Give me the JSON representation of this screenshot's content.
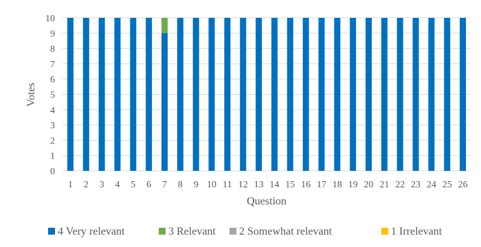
{
  "chart_data": {
    "type": "bar",
    "stacked": true,
    "title": "",
    "xlabel": "Question",
    "ylabel": "Votes",
    "ylim": [
      0,
      10
    ],
    "yticks": [
      "0",
      "1",
      "2",
      "3",
      "4",
      "5",
      "6",
      "7",
      "8",
      "9",
      "10"
    ],
    "grid": true,
    "legend_position": "bottom",
    "categories": [
      "1",
      "2",
      "3",
      "4",
      "5",
      "6",
      "7",
      "8",
      "9",
      "10",
      "11",
      "12",
      "13",
      "14",
      "15",
      "16",
      "17",
      "18",
      "19",
      "20",
      "21",
      "22",
      "23",
      "24",
      "25",
      "26"
    ],
    "series": [
      {
        "name": "4 Very relevant",
        "color": "#0070c0",
        "values": [
          10,
          10,
          10,
          10,
          10,
          10,
          9,
          10,
          10,
          10,
          10,
          10,
          10,
          10,
          10,
          10,
          10,
          10,
          10,
          10,
          10,
          10,
          10,
          10,
          10,
          10
        ]
      },
      {
        "name": "3 Relevant",
        "color": "#70ad47",
        "values": [
          0,
          0,
          0,
          0,
          0,
          0,
          1,
          0,
          0,
          0,
          0,
          0,
          0,
          0,
          0,
          0,
          0,
          0,
          0,
          0,
          0,
          0,
          0,
          0,
          0,
          0
        ]
      },
      {
        "name": "2 Somewhat relevant",
        "color": "#a5a5a5",
        "values": [
          0,
          0,
          0,
          0,
          0,
          0,
          0,
          0,
          0,
          0,
          0,
          0,
          0,
          0,
          0,
          0,
          0,
          0,
          0,
          0,
          0,
          0,
          0,
          0,
          0,
          0
        ]
      },
      {
        "name": "1 Irrelevant",
        "color": "#ffc000",
        "values": [
          0,
          0,
          0,
          0,
          0,
          0,
          0,
          0,
          0,
          0,
          0,
          0,
          0,
          0,
          0,
          0,
          0,
          0,
          0,
          0,
          0,
          0,
          0,
          0,
          0,
          0
        ]
      }
    ]
  }
}
